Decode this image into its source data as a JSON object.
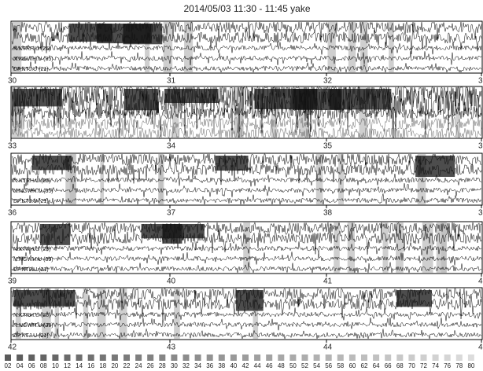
{
  "title": "2014/05/03 11:30 - 11:45 yake",
  "panels": [
    {
      "ticks": [
        "30",
        "31",
        "32",
        "3"
      ],
      "stations": [
        "N.KTRH.U (25)",
        "N.NGWH.U (35)",
        "DP.KTJ.U (21)"
      ]
    },
    {
      "ticks": [
        "33",
        "34",
        "35",
        "3"
      ],
      "stations": []
    },
    {
      "ticks": [
        "36",
        "37",
        "38",
        "3"
      ],
      "stations": [
        "N.KTRH.U (25)",
        "N.NGWH.U (35)",
        "DP.KTJ.U (21)"
      ]
    },
    {
      "ticks": [
        "39",
        "40",
        "41",
        "4"
      ],
      "stations": [
        "N.KTRH.U (25)",
        "N.NGWH.U (35)",
        "DP.KTJ.U (21)"
      ]
    },
    {
      "ticks": [
        "42",
        "43",
        "44",
        "4"
      ],
      "stations": [
        "N.KTRH.U (25)",
        "N.NGWH.U (35)",
        "DP.KTJ.U (21)"
      ]
    }
  ],
  "colorbar": [
    "02",
    "04",
    "06",
    "08",
    "10",
    "12",
    "14",
    "16",
    "18",
    "20",
    "22",
    "24",
    "26",
    "28",
    "30",
    "32",
    "34",
    "36",
    "38",
    "40",
    "42",
    "44",
    "46",
    "48",
    "50",
    "52",
    "54",
    "56",
    "58",
    "60",
    "62",
    "64",
    "66",
    "68",
    "70",
    "72",
    "74",
    "76",
    "78",
    "80"
  ]
}
